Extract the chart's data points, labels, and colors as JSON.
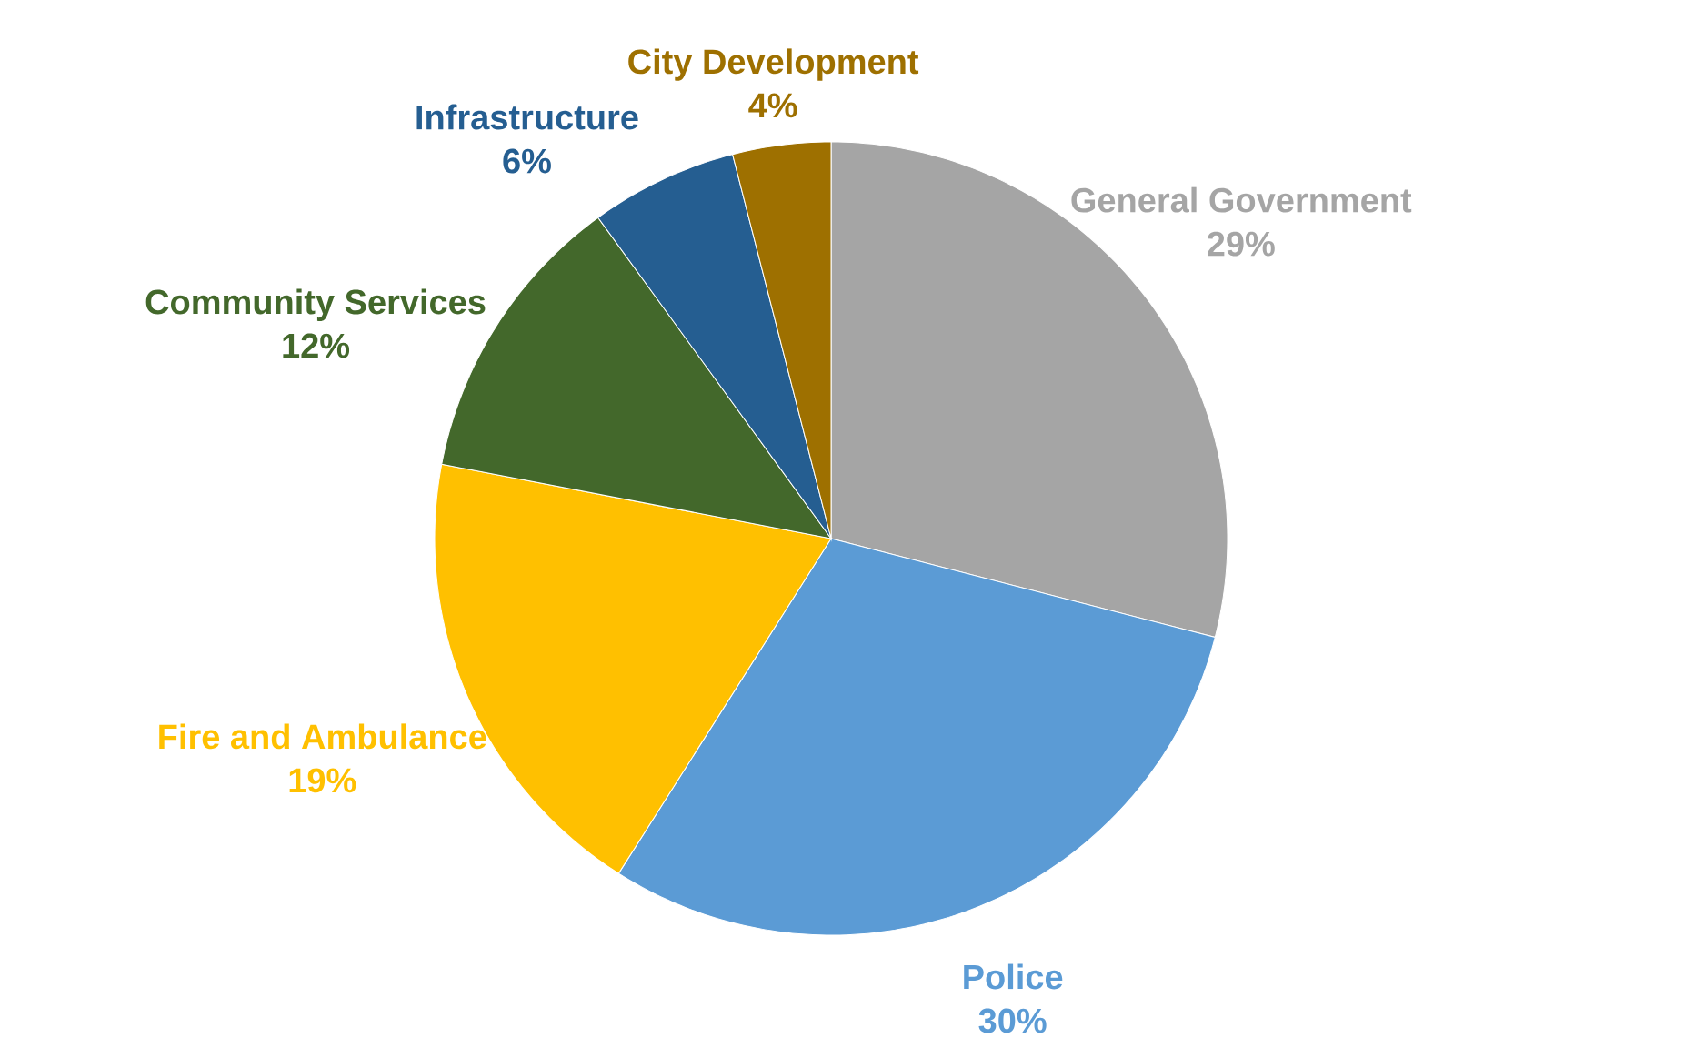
{
  "chart_data": {
    "type": "pie",
    "categories": [
      "General Government",
      "Police",
      "Fire and Ambulance",
      "Community Services",
      "Infrastructure",
      "City Development"
    ],
    "values": [
      29,
      30,
      19,
      12,
      6,
      4
    ],
    "colors": [
      "#a5a5a5",
      "#5b9bd5",
      "#ffc000",
      "#43682b",
      "#255e91",
      "#9e7000"
    ],
    "value_labels": [
      "29%",
      "30%",
      "19%",
      "12%",
      "6%",
      "4%"
    ]
  }
}
